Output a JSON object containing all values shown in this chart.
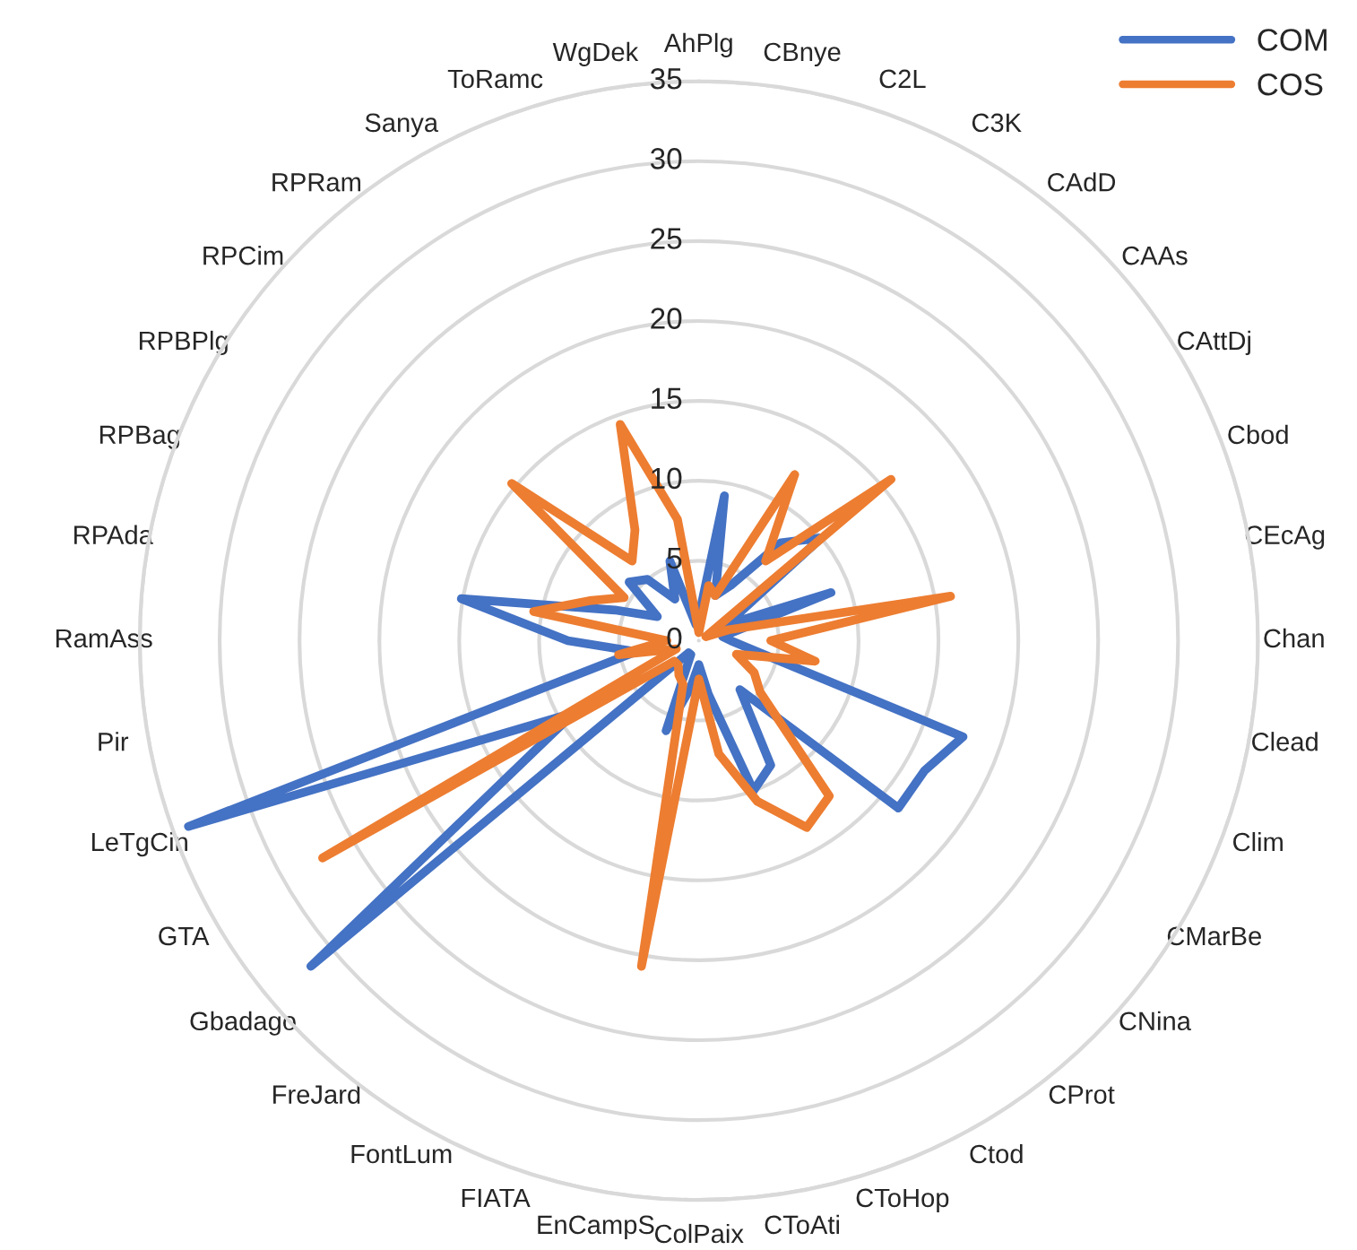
{
  "chart_data": {
    "type": "radar",
    "categories": [
      "AhPlg",
      "CBnye",
      "C2L",
      "C3K",
      "CAdD",
      "CAAs",
      "CAttDj",
      "Cbod",
      "CEcAg",
      "Chan",
      "Clead",
      "Clim",
      "CMarBe",
      "CNina",
      "CProt",
      "Ctod",
      "CToHop",
      "CToAti",
      "ColPaix",
      "EnCampS",
      "FIATA",
      "FontLum",
      "FreJard",
      "Gbadago",
      "GTA",
      "LeTgCin",
      "Pir",
      "RamAss",
      "RPAda",
      "RPBag",
      "RPBPlg",
      "RPCim",
      "RPRam",
      "Sanya",
      "ToRamc",
      "WgDek"
    ],
    "series": [
      {
        "name": "COM",
        "color": "#4472c4",
        "values": [
          1.5,
          9.2,
          3,
          4,
          8,
          10,
          2,
          8.8,
          1.5,
          2,
          3.5,
          17.6,
          16.3,
          16.3,
          4,
          9,
          10,
          3.4,
          1.5,
          3,
          6,
          1,
          1,
          31.7,
          9,
          34,
          4,
          8.2,
          15.1,
          5.6,
          3,
          5.7,
          5,
          3,
          5.3,
          1
        ]
      },
      {
        "name": "COS",
        "color": "#ed7d31",
        "values": [
          0.5,
          3.5,
          3,
          12,
          6.5,
          15.7,
          0.5,
          2,
          16,
          4.5,
          7.4,
          2.5,
          4,
          5,
          12.7,
          13.5,
          10.7,
          7.2,
          2.4,
          20.7,
          2.9,
          2.5,
          2,
          2,
          27.2,
          1.5,
          5.1,
          2,
          10.5,
          7.3,
          5.4,
          15.3,
          6.5,
          8,
          14.4,
          7.7
        ]
      }
    ],
    "ylim": [
      0,
      35
    ],
    "yticks": [
      0,
      5,
      10,
      15,
      20,
      25,
      30,
      35
    ],
    "grid": "y",
    "legend": "top right",
    "line_style": "solid",
    "marker": "none"
  }
}
